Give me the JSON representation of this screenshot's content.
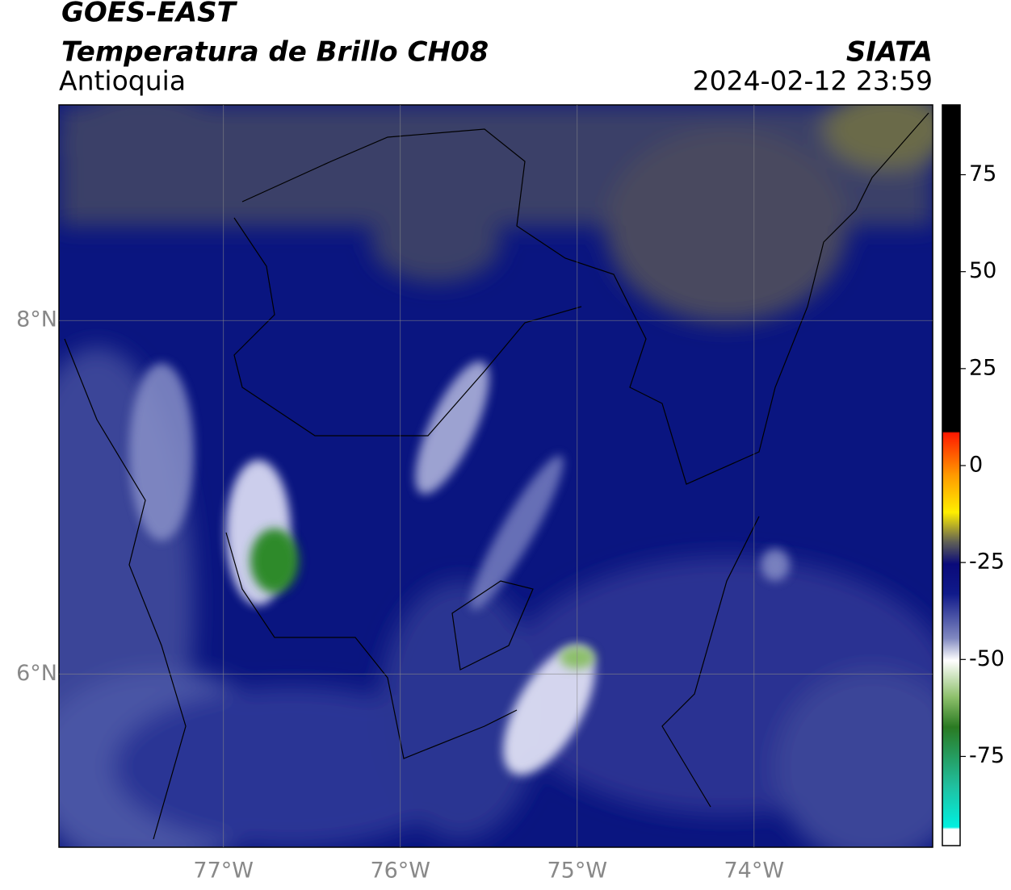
{
  "header": {
    "satellite": "GOES-EAST",
    "product": "Temperatura de Brillo CH08",
    "region": "Antioquia",
    "agency": "SIATA",
    "datetime": "2024-02-12 23:59"
  },
  "map": {
    "lon_lim": [
      -77.93,
      -72.99
    ],
    "lat_lim": [
      5.02,
      9.22
    ],
    "lon_ticks": [
      {
        "value": -77,
        "label": "77°W"
      },
      {
        "value": -76,
        "label": "76°W"
      },
      {
        "value": -75,
        "label": "75°W"
      },
      {
        "value": -74,
        "label": "74°W"
      }
    ],
    "lat_ticks": [
      {
        "value": 8,
        "label": "8°N"
      },
      {
        "value": 6,
        "label": "6°N"
      }
    ]
  },
  "colorbar": {
    "lim": [
      -98,
      93
    ],
    "ticks": [
      75,
      50,
      25,
      0,
      -25,
      -50,
      -75
    ]
  }
}
